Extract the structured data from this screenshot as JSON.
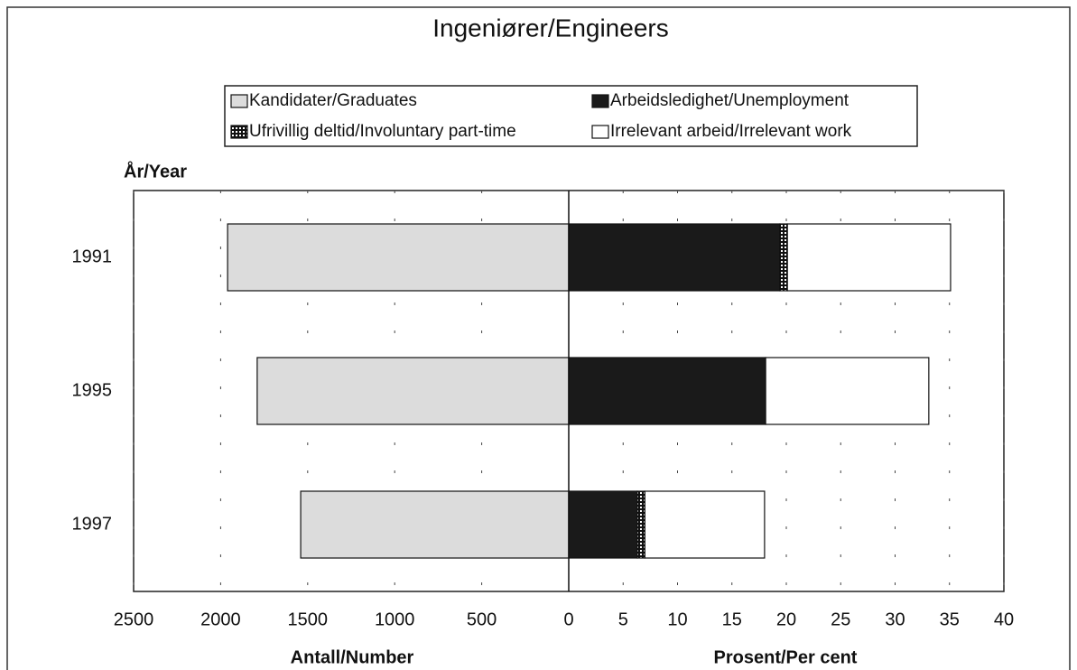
{
  "chart_data": {
    "type": "bar",
    "orientation": "horizontal",
    "title": "Ingeniører/Engineers",
    "ylabel": "År/Year",
    "categories": [
      "1991",
      "1995",
      "1997"
    ],
    "xlabel": "Antall/Number",
    "xlim": [
      2500,
      0
    ],
    "xticks": [
      2500,
      2000,
      1500,
      1000,
      500
    ],
    "x2label": "Prosent/Per cent",
    "x2lim": [
      0,
      40
    ],
    "x2ticks": [
      0,
      5,
      10,
      15,
      20,
      25,
      30,
      35,
      40
    ],
    "grid": true,
    "stacked": true,
    "series": [
      {
        "name": "Kandidater/Graduates",
        "color": "#dcdcdc",
        "axis": "x",
        "values": [
          1960,
          1790,
          1540
        ]
      },
      {
        "name": "Arbeidsledighet/Unemployment",
        "color": "#1a1a1a",
        "axis": "x2",
        "values": [
          19.4,
          18.1,
          6.3
        ]
      },
      {
        "name": "Ufrivillig deltid/Involuntary part-time",
        "color": "hatch",
        "axis": "x2",
        "values": [
          0.7,
          0,
          0.7
        ]
      },
      {
        "name": "Irrelevant arbeid/Irrelevant work",
        "color": "#ffffff",
        "axis": "x2",
        "values": [
          15.0,
          15.0,
          11.0
        ]
      }
    ]
  }
}
